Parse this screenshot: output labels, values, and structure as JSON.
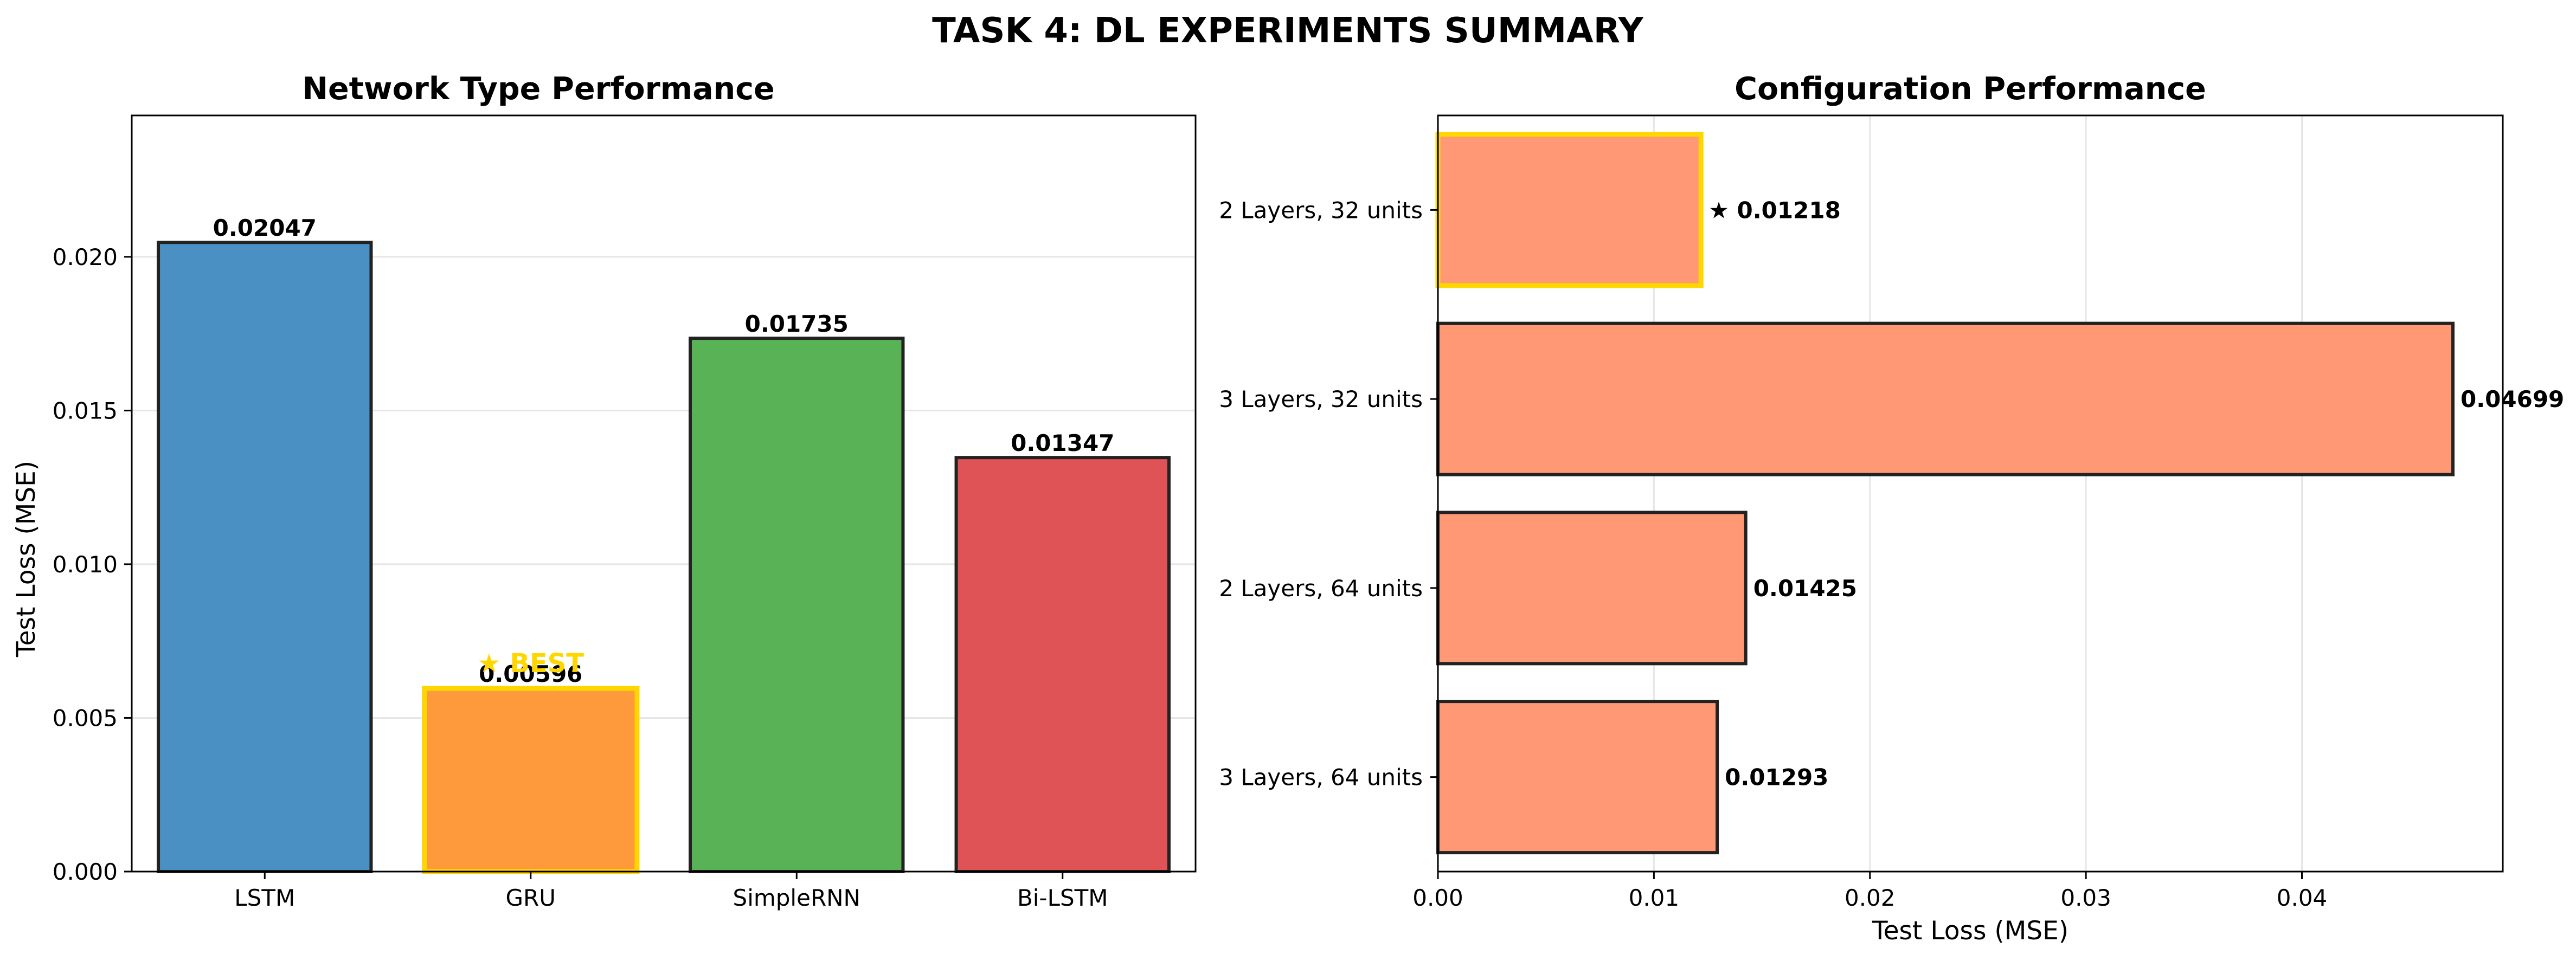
{
  "figure": {
    "title": "TASK 4: DL EXPERIMENTS SUMMARY"
  },
  "colors": {
    "highlight": "#FFD700",
    "grid": "#E6E6E6",
    "axis": "#000000",
    "bar_edge": "#222222"
  },
  "chart_data": [
    {
      "type": "bar",
      "title": "Network Type Performance",
      "xlabel": "",
      "ylabel": "Test Loss (MSE)",
      "categories": [
        "LSTM",
        "GRU",
        "SimpleRNN",
        "Bi-LSTM"
      ],
      "values": [
        0.02047,
        0.00596,
        0.01735,
        0.01347
      ],
      "value_labels": [
        "0.02047",
        "0.00596",
        "0.01735",
        "0.01347"
      ],
      "colors": [
        "#4A90C2",
        "#FF9A3C",
        "#59B356",
        "#DF5356"
      ],
      "ylim": [
        0,
        0.0246
      ],
      "yticks": [
        0,
        0.005,
        0.01,
        0.015,
        0.02
      ],
      "ytick_labels": [
        "0.000",
        "0.005",
        "0.010",
        "0.015",
        "0.020"
      ],
      "grid": "y",
      "highlight_index": 1,
      "highlight_label": "★ BEST"
    },
    {
      "type": "barh",
      "title": "Configuration Performance",
      "xlabel": "Test Loss (MSE)",
      "ylabel": "",
      "categories": [
        "2 Layers, 32 units",
        "3 Layers, 32 units",
        "2 Layers, 64 units",
        "3 Layers, 64 units"
      ],
      "values": [
        0.01218,
        0.04699,
        0.01425,
        0.01293
      ],
      "value_labels": [
        "★ 0.01218",
        "0.04699",
        "0.01425",
        "0.01293"
      ],
      "color": "#FF9875",
      "xlim": [
        0,
        0.0493
      ],
      "xticks": [
        0,
        0.01,
        0.02,
        0.03,
        0.04
      ],
      "xtick_labels": [
        "0.00",
        "0.01",
        "0.02",
        "0.03",
        "0.04"
      ],
      "grid": "x",
      "highlight_index": 0
    }
  ]
}
